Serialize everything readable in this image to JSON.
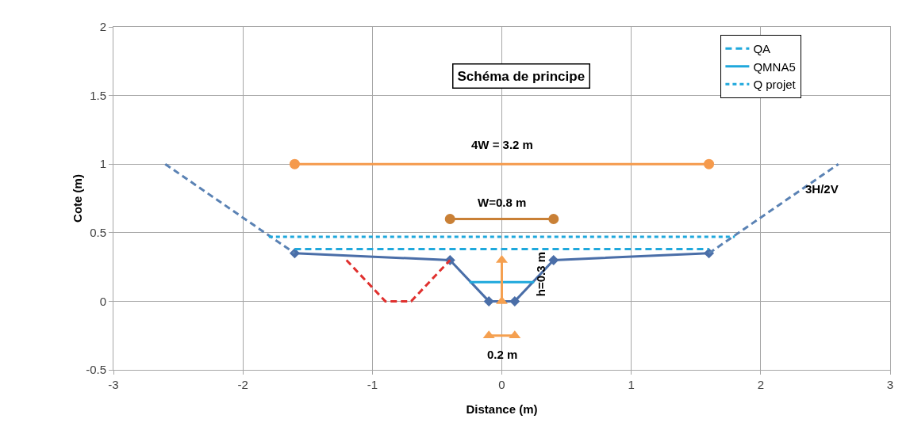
{
  "chart_data": {
    "type": "line",
    "title": "Schéma de principe",
    "xlabel": "Distance (m)",
    "ylabel": "Cote (m)",
    "xlim": [
      -3,
      3
    ],
    "xticks": [
      -3,
      -2,
      -1,
      0,
      1,
      2,
      3
    ],
    "ylim": [
      -0.5,
      2
    ],
    "yticks": [
      -0.5,
      0,
      0.5,
      1,
      1.5,
      2
    ],
    "grid": true,
    "legend": "top right",
    "series": [
      {
        "x": [
          -1.6,
          -0.4,
          -0.1,
          0.1,
          0.4,
          1.6
        ],
        "values": [
          0.35,
          0.3,
          0,
          0,
          0.3,
          0.35
        ],
        "color": "#4a6ea8",
        "marker": "diamond",
        "line_style": "solid"
      },
      {
        "x": [
          -2.6,
          -1.6
        ],
        "values": [
          1,
          0.35
        ],
        "color": "#5a82b4",
        "marker": "none",
        "line_style": "dashed"
      },
      {
        "x": [
          1.6,
          2.6
        ],
        "values": [
          0.35,
          1
        ],
        "color": "#5a82b4",
        "marker": "none",
        "line_style": "dashed"
      },
      {
        "x": [
          -1.2,
          -0.9,
          -0.7,
          -0.4
        ],
        "values": [
          0.3,
          0,
          0,
          0.3
        ],
        "color": "#e0302e",
        "marker": "none",
        "line_style": "dashed"
      },
      {
        "name": "QA",
        "x": [
          -1.6,
          1.6
        ],
        "values": [
          0.38,
          0.38
        ],
        "color": "#1fa8dc",
        "marker": "none",
        "line_style": "dashed"
      },
      {
        "name": "QMNA5",
        "x": [
          -0.25,
          0.25
        ],
        "values": [
          0.14,
          0.14
        ],
        "color": "#1fa8dc",
        "marker": "none",
        "line_style": "solid"
      },
      {
        "name": "Q projet",
        "x": [
          -1.8,
          1.8
        ],
        "values": [
          0.47,
          0.47
        ],
        "color": "#1fa8dc",
        "marker": "none",
        "line_style": "dotted"
      },
      {
        "x": [
          -1.6,
          1.6
        ],
        "values": [
          1,
          1
        ],
        "color": "#f59a4c",
        "marker": "circle",
        "line_style": "solid"
      },
      {
        "x": [
          -0.4,
          0.4
        ],
        "values": [
          0.6,
          0.6
        ],
        "color": "#c98036",
        "marker": "circle",
        "line_style": "solid"
      },
      {
        "x": [
          0,
          0
        ],
        "values": [
          0,
          0.3
        ],
        "color": "#f5a050",
        "marker": "triangle",
        "line_style": "solid"
      },
      {
        "x": [
          -0.1,
          0.1
        ],
        "values": [
          -0.25,
          -0.25
        ],
        "color": "#f5a050",
        "marker": "triangle",
        "line_style": "solid"
      }
    ],
    "annotations": [
      "4W = 3.2 m",
      "W=0.8 m",
      "h=0.3 m",
      "0.2 m",
      "3H/2V"
    ]
  }
}
